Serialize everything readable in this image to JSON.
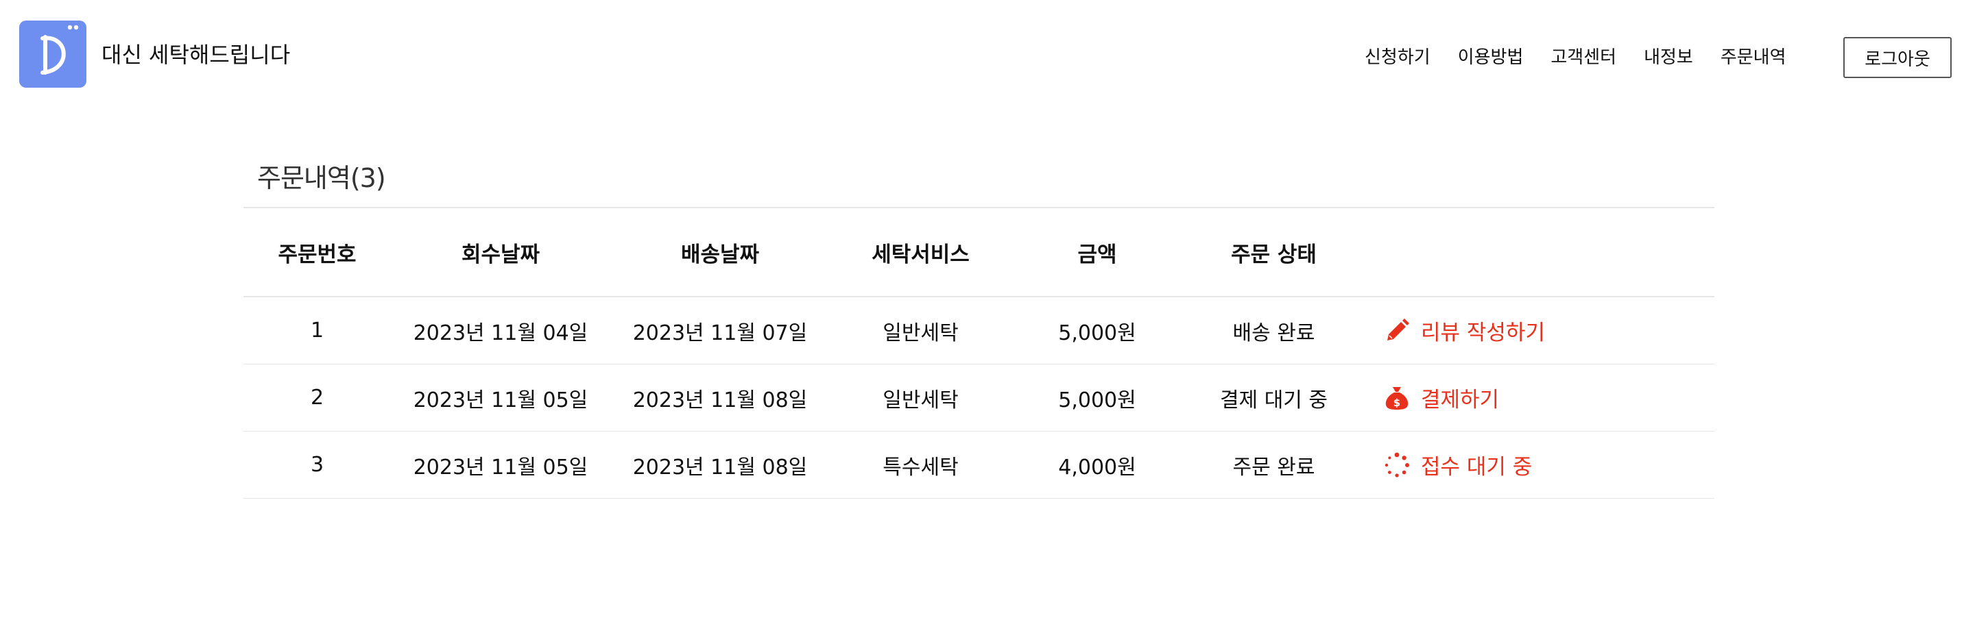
{
  "brand": {
    "logo_letter": "D",
    "name": "대신 세탁해드립니다",
    "logo_color": "#6f8ff0"
  },
  "nav": {
    "items": [
      {
        "label": "신청하기"
      },
      {
        "label": "이용방법"
      },
      {
        "label": "고객센터"
      },
      {
        "label": "내정보"
      },
      {
        "label": "주문내역"
      }
    ],
    "logout_label": "로그아웃"
  },
  "orders": {
    "title": "주문내역(3)",
    "columns": [
      "주문번호",
      "회수날짜",
      "배송날짜",
      "세탁서비스",
      "금액",
      "주문 상태"
    ],
    "rows": [
      {
        "order_no": "1",
        "pickup_date": "2023년 11월 04일",
        "delivery_date": "2023년 11월 07일",
        "service": "일반세탁",
        "price": "5,000원",
        "status": "배송 완료",
        "action_label": "리뷰 작성하기",
        "action_icon": "pencil-icon"
      },
      {
        "order_no": "2",
        "pickup_date": "2023년 11월 05일",
        "delivery_date": "2023년 11월 08일",
        "service": "일반세탁",
        "price": "5,000원",
        "status": "결제 대기 중",
        "action_label": "결제하기",
        "action_icon": "money-bag-icon"
      },
      {
        "order_no": "3",
        "pickup_date": "2023년 11월 05일",
        "delivery_date": "2023년 11월 08일",
        "service": "특수세탁",
        "price": "4,000원",
        "status": "주문 완료",
        "action_label": "접수 대기 중",
        "action_icon": "spinner-icon"
      }
    ]
  },
  "colors": {
    "accent": "#e8311c",
    "divider": "#e6e6e6"
  }
}
